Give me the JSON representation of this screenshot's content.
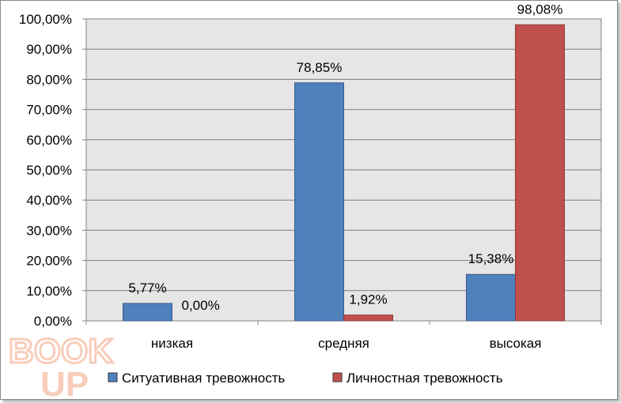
{
  "chart_data": {
    "type": "bar",
    "categories": [
      "низкая",
      "средняя",
      "высокая"
    ],
    "series": [
      {
        "name": "Ситуативная тревожность",
        "values": [
          5.77,
          78.85,
          15.38
        ],
        "labels": [
          "5,77%",
          "78,85%",
          "15,38%"
        ],
        "color": "#4f81bd",
        "stroke": "#385d8a"
      },
      {
        "name": "Личностная тревожность",
        "values": [
          0.0,
          1.92,
          98.08
        ],
        "labels": [
          "0,00%",
          "1,92%",
          "98,08%"
        ],
        "color": "#c0504d",
        "stroke": "#8c3836"
      }
    ],
    "ylim": [
      0,
      100
    ],
    "yticks": [
      0,
      10,
      20,
      30,
      40,
      50,
      60,
      70,
      80,
      90,
      100
    ],
    "ytick_labels": [
      "0,00%",
      "10,00%",
      "20,00%",
      "30,00%",
      "40,00%",
      "50,00%",
      "60,00%",
      "70,00%",
      "80,00%",
      "90,00%",
      "100,00%"
    ],
    "grid": true,
    "plot_background": "#e6e6e6",
    "legend_position": "bottom"
  },
  "watermark": {
    "text_top": "BOOK",
    "text_bottom": "UP",
    "color": "#f4a582"
  }
}
